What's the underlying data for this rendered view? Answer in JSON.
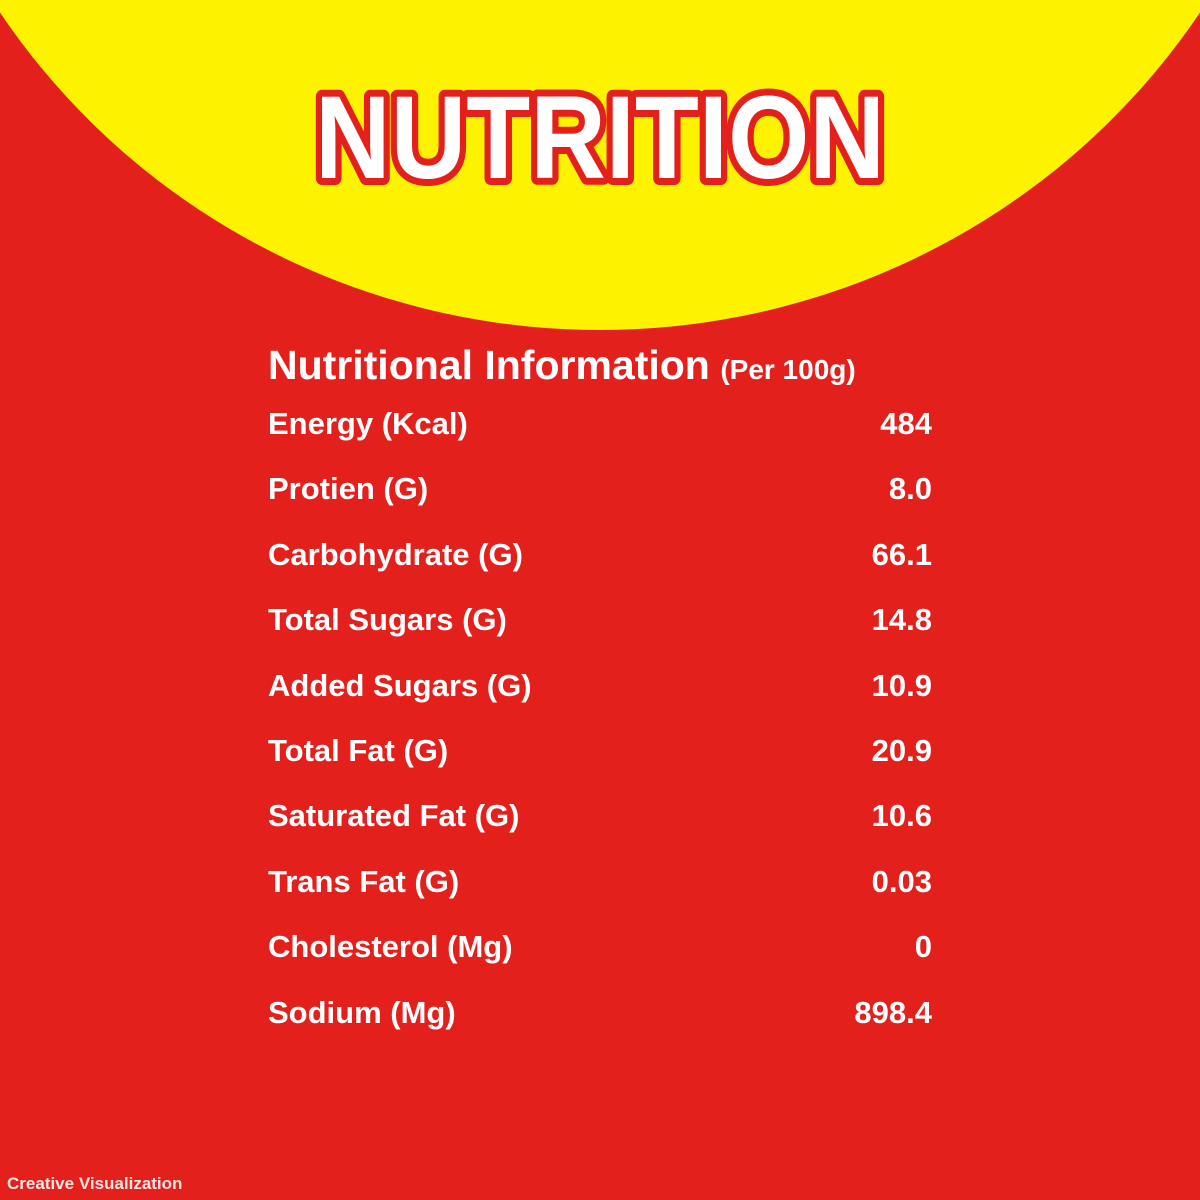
{
  "colors": {
    "background": "#e3201c",
    "arc": "#fdf200",
    "title_fill": "#ffffff",
    "title_outline": "#e3201c"
  },
  "title": "NUTRITION",
  "heading": {
    "main": "Nutritional Information",
    "sub": "(Per 100g)"
  },
  "rows": [
    {
      "label": "Energy (Kcal)",
      "value": "484"
    },
    {
      "label": "Protien (G)",
      "value": "8.0"
    },
    {
      "label": "Carbohydrate (G)",
      "value": "66.1"
    },
    {
      "label": "Total Sugars (G)",
      "value": "14.8"
    },
    {
      "label": "Added Sugars (G)",
      "value": "10.9"
    },
    {
      "label": "Total Fat (G)",
      "value": "20.9"
    },
    {
      "label": "Saturated Fat (G)",
      "value": "10.6"
    },
    {
      "label": "Trans Fat (G)",
      "value": "0.03"
    },
    {
      "label": "Cholesterol (Mg)",
      "value": "0"
    },
    {
      "label": "Sodium (Mg)",
      "value": "898.4"
    }
  ],
  "footer": "Creative Visualization"
}
